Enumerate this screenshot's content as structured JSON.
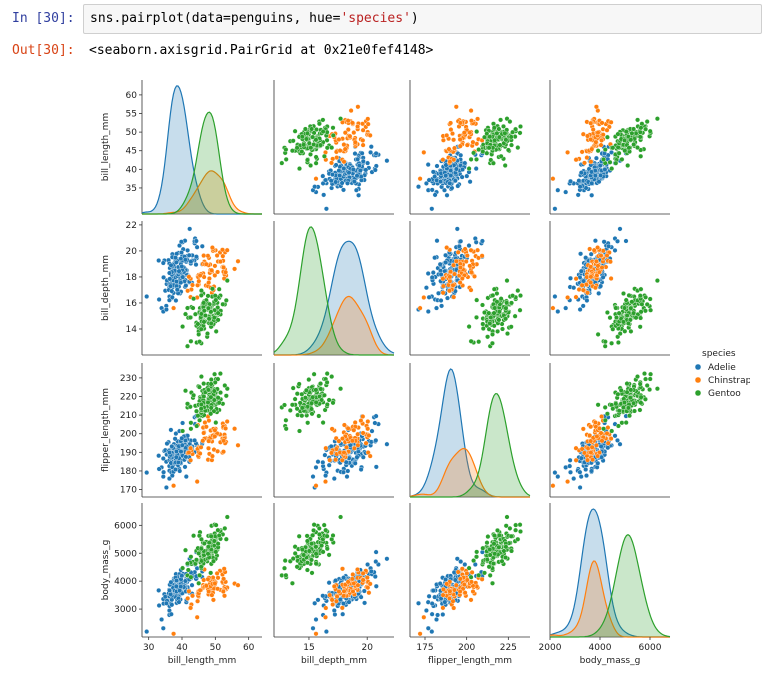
{
  "cell": {
    "in_prompt": "In [30]:",
    "out_prompt": "Out[30]:",
    "code_prefix": "sns.pairplot(data=penguins, hue=",
    "code_string": "'species'",
    "code_suffix": ")",
    "output_text": "<seaborn.axisgrid.PairGrid at 0x21e0fef4148>"
  },
  "chart_data": {
    "type": "scatter",
    "subtype": "pairplot",
    "variables": [
      "bill_length_mm",
      "bill_depth_mm",
      "flipper_length_mm",
      "body_mass_g"
    ],
    "axis_labels": {
      "x": [
        "bill_length_mm",
        "bill_depth_mm",
        "flipper_length_mm",
        "body_mass_g"
      ],
      "y": [
        "bill_length_mm",
        "bill_depth_mm",
        "flipper_length_mm",
        "body_mass_g"
      ]
    },
    "ranges": [
      [
        28,
        64
      ],
      [
        12,
        22.3
      ],
      [
        166,
        238
      ],
      [
        2000,
        6800
      ]
    ],
    "xticks": [
      [
        30,
        40,
        50,
        60
      ],
      [
        15,
        20
      ],
      [
        175,
        200,
        225
      ],
      [
        2000,
        4000,
        6000
      ]
    ],
    "yticks": [
      [
        35,
        40,
        45,
        50,
        55,
        60
      ],
      [
        14,
        16,
        18,
        20,
        22
      ],
      [
        170,
        180,
        190,
        200,
        210,
        220,
        230
      ],
      [
        3000,
        4000,
        5000,
        6000
      ]
    ],
    "diagonal": "kde",
    "offdiagonal": "scatter",
    "legend": {
      "title": "species",
      "placement": "right"
    },
    "series": [
      {
        "name": "Adelie",
        "color": "#1f77b4",
        "approx_stats": {
          "bill_length_mm": {
            "mean": 38.8,
            "sd": 2.7
          },
          "bill_depth_mm": {
            "mean": 18.3,
            "sd": 1.2
          },
          "flipper_length_mm": {
            "mean": 190,
            "sd": 6.5
          },
          "body_mass_g": {
            "mean": 3700,
            "sd": 460
          }
        },
        "count": 151
      },
      {
        "name": "Chinstrap",
        "color": "#ff7f0e",
        "approx_stats": {
          "bill_length_mm": {
            "mean": 48.8,
            "sd": 3.3
          },
          "bill_depth_mm": {
            "mean": 18.4,
            "sd": 1.1
          },
          "flipper_length_mm": {
            "mean": 196,
            "sd": 7.1
          },
          "body_mass_g": {
            "mean": 3730,
            "sd": 380
          }
        },
        "count": 68
      },
      {
        "name": "Gentoo",
        "color": "#2ca02c",
        "approx_stats": {
          "bill_length_mm": {
            "mean": 47.5,
            "sd": 3.1
          },
          "bill_depth_mm": {
            "mean": 15.0,
            "sd": 1.0
          },
          "flipper_length_mm": {
            "mean": 217,
            "sd": 6.5
          },
          "body_mass_g": {
            "mean": 5080,
            "sd": 500
          }
        },
        "count": 123
      }
    ]
  }
}
